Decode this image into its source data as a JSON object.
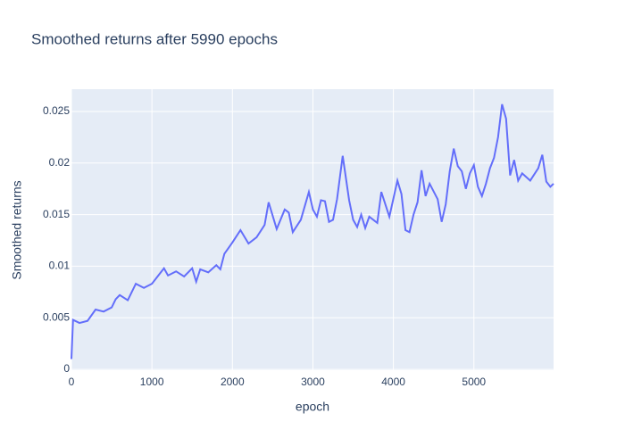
{
  "chart_data": {
    "type": "line",
    "title": "Smoothed returns after 5990 epochs",
    "x_label": "epoch",
    "y_label": "Smoothed returns",
    "xlim": [
      0,
      5990
    ],
    "ylim": [
      -8e-05,
      0.02716
    ],
    "xticks": [
      0,
      1000,
      2000,
      3000,
      4000,
      5000
    ],
    "yticks": [
      0,
      0.005,
      0.01,
      0.015,
      0.02,
      0.025
    ],
    "grid": true,
    "series": [
      {
        "name": "Smoothed returns",
        "color": "#636efa",
        "x": [
          0,
          20,
          100,
          200,
          300,
          400,
          500,
          550,
          600,
          700,
          800,
          900,
          1000,
          1100,
          1150,
          1200,
          1300,
          1400,
          1500,
          1550,
          1600,
          1700,
          1800,
          1850,
          1900,
          2000,
          2100,
          2200,
          2300,
          2400,
          2450,
          2550,
          2650,
          2700,
          2750,
          2850,
          2950,
          3000,
          3050,
          3100,
          3150,
          3200,
          3250,
          3300,
          3370,
          3450,
          3500,
          3550,
          3600,
          3650,
          3700,
          3800,
          3850,
          3900,
          3950,
          4050,
          4100,
          4150,
          4200,
          4250,
          4300,
          4350,
          4400,
          4450,
          4550,
          4600,
          4650,
          4700,
          4750,
          4800,
          4850,
          4900,
          4950,
          5000,
          5050,
          5100,
          5150,
          5200,
          5250,
          5300,
          5350,
          5400,
          5450,
          5500,
          5550,
          5600,
          5700,
          5800,
          5850,
          5900,
          5950,
          5990
        ],
        "values": [
          0.001,
          0.0048,
          0.0045,
          0.0047,
          0.0058,
          0.0056,
          0.006,
          0.0068,
          0.0072,
          0.0067,
          0.0083,
          0.0079,
          0.0083,
          0.0093,
          0.0098,
          0.0091,
          0.0095,
          0.009,
          0.0098,
          0.0085,
          0.0097,
          0.0094,
          0.0101,
          0.0097,
          0.0112,
          0.0123,
          0.0135,
          0.0122,
          0.0128,
          0.014,
          0.0162,
          0.0136,
          0.0155,
          0.0152,
          0.0133,
          0.0145,
          0.0172,
          0.0155,
          0.0148,
          0.0164,
          0.0163,
          0.0143,
          0.0145,
          0.0165,
          0.0207,
          0.0164,
          0.0145,
          0.0138,
          0.015,
          0.0137,
          0.0148,
          0.0142,
          0.0172,
          0.016,
          0.0148,
          0.0183,
          0.017,
          0.0135,
          0.0133,
          0.015,
          0.0162,
          0.0193,
          0.0168,
          0.018,
          0.0165,
          0.0143,
          0.016,
          0.0192,
          0.0214,
          0.0197,
          0.0192,
          0.0175,
          0.019,
          0.0198,
          0.0177,
          0.0168,
          0.018,
          0.0195,
          0.0205,
          0.0225,
          0.0257,
          0.0243,
          0.0188,
          0.0203,
          0.0183,
          0.019,
          0.0183,
          0.0195,
          0.0208,
          0.0182,
          0.0177,
          0.018
        ]
      }
    ]
  }
}
